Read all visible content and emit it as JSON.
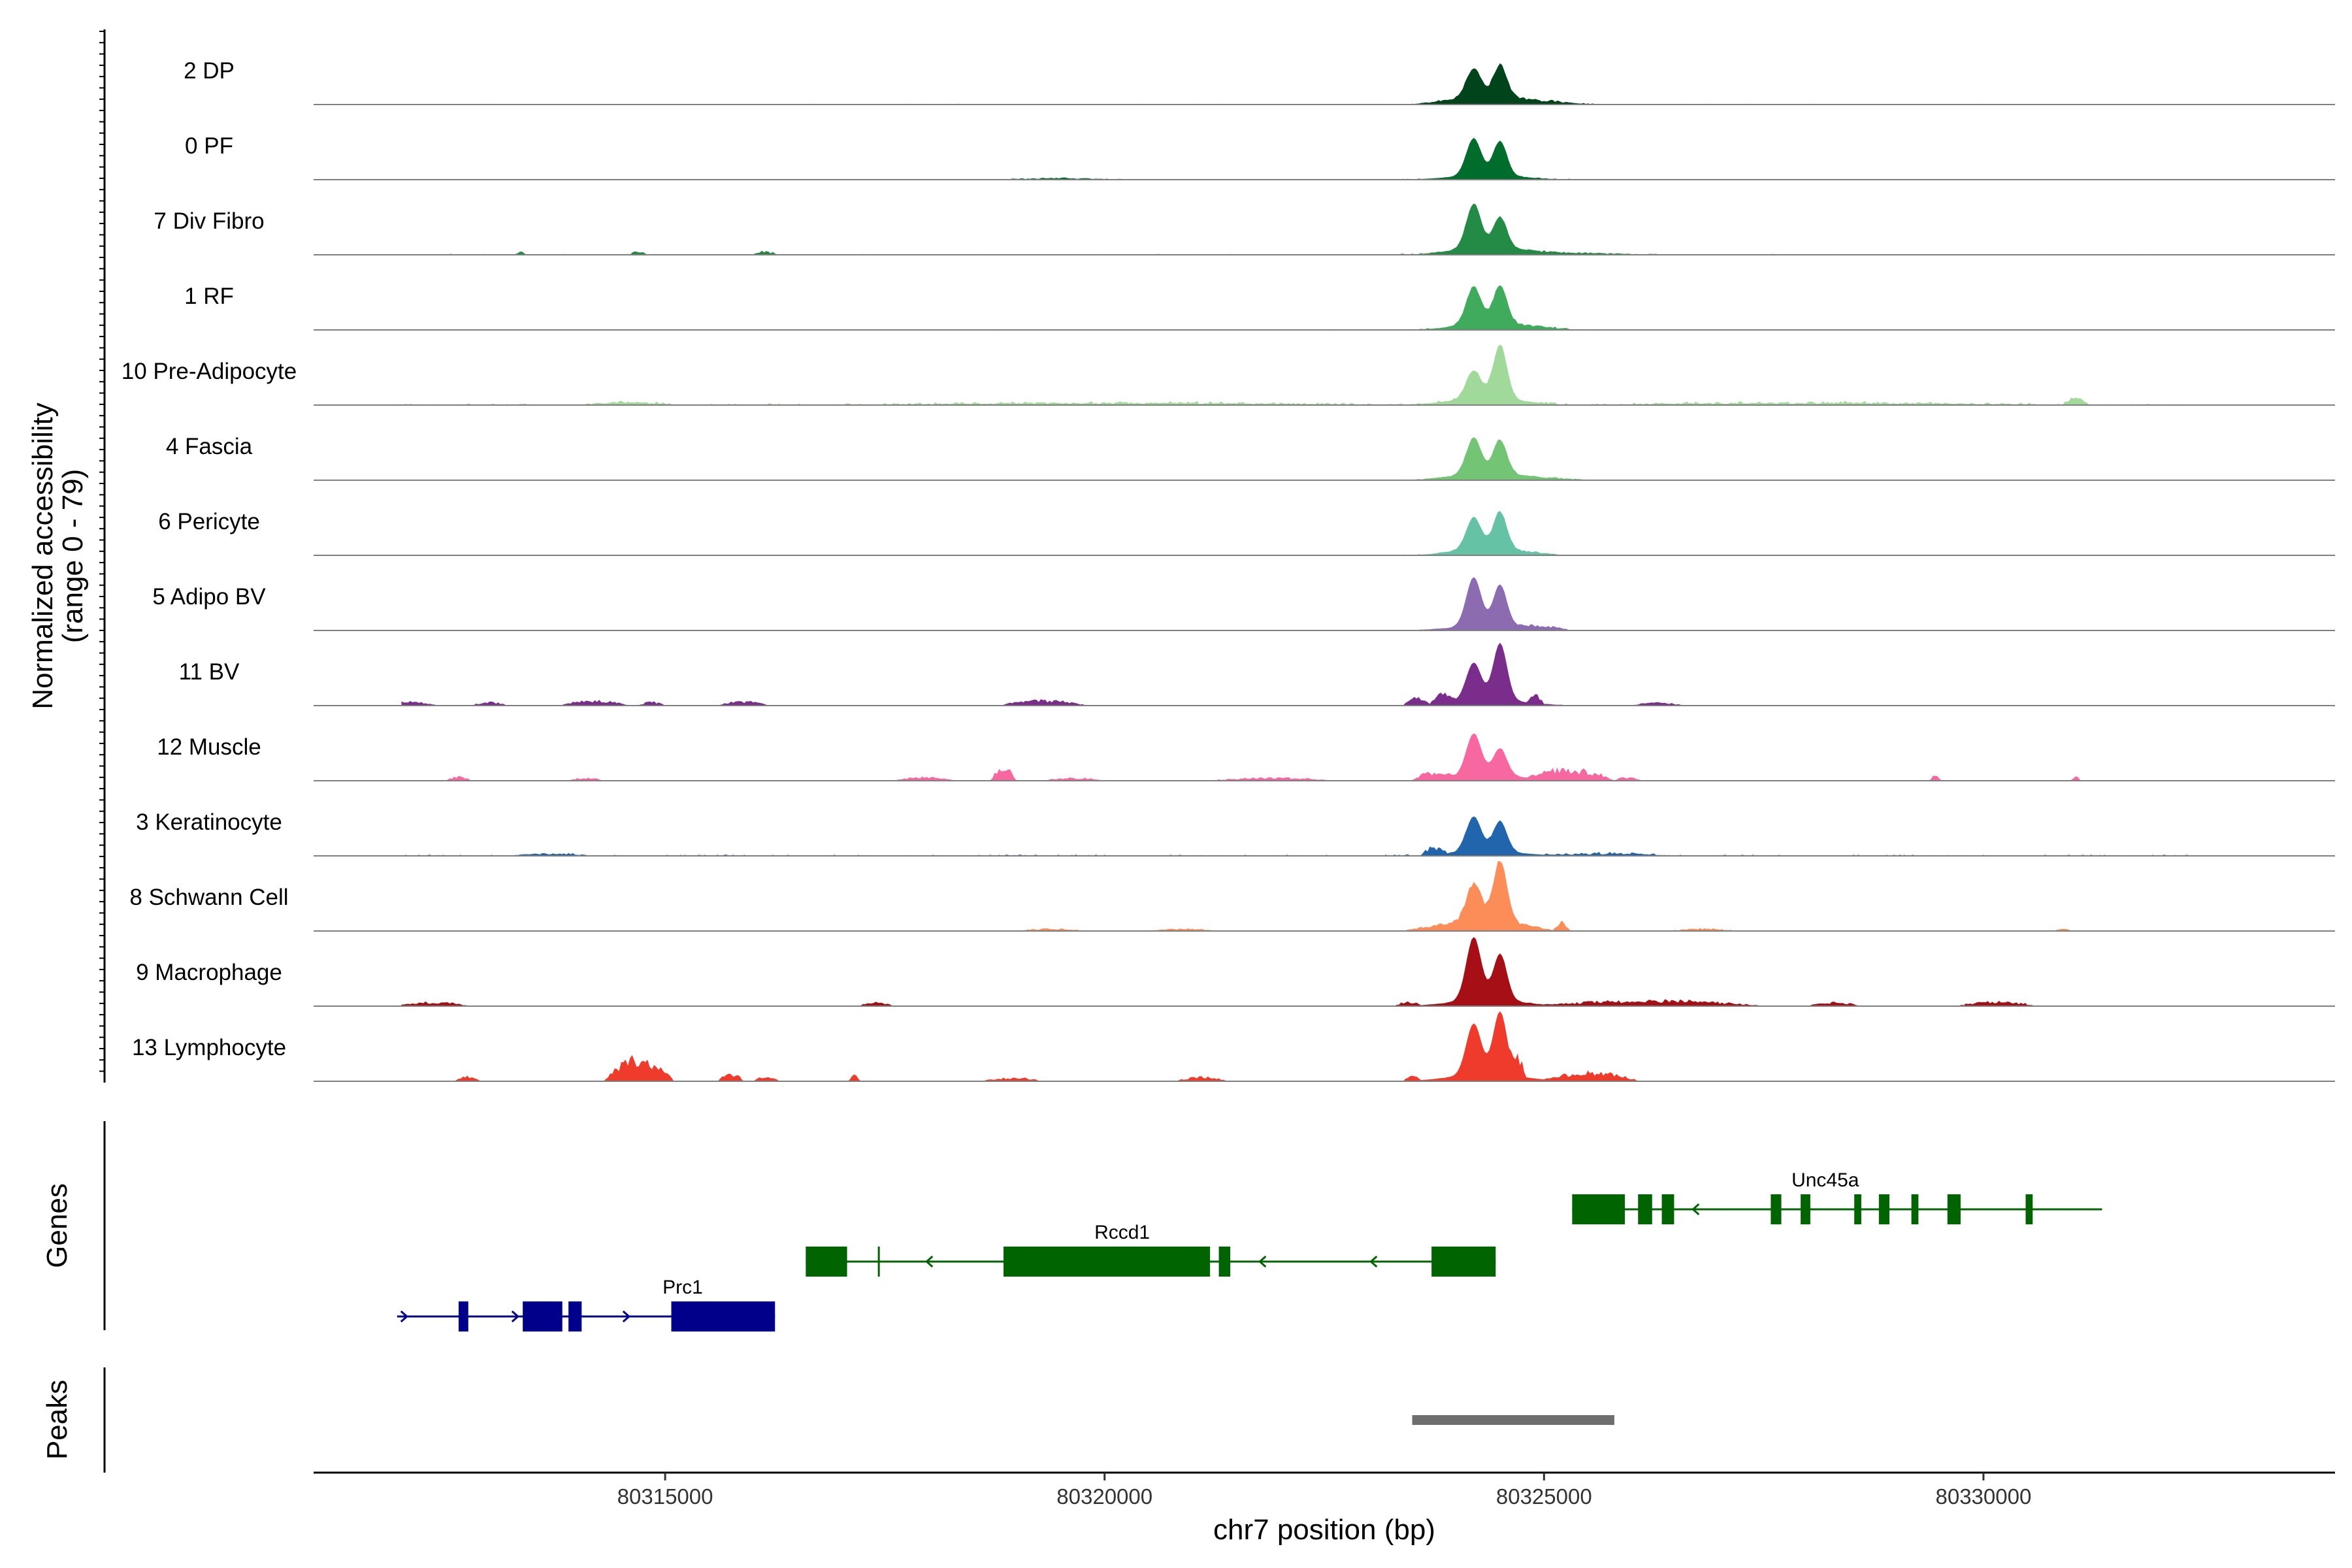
{
  "chart_data": {
    "type": "area",
    "y_axis_title": {
      "line1": "Normalized accessibility",
      "line2": "(range 0 - 79)"
    },
    "ylim": [
      0,
      79
    ],
    "x_axis_title": "chr7 position (bp)",
    "xlim": [
      80311000,
      80334000
    ],
    "x_ticks": [
      80315000,
      80320000,
      80325000,
      80330000
    ],
    "x_tick_labels": [
      "80315000",
      "80320000",
      "80325000",
      "80330000"
    ],
    "main_peak_summits": [
      80324200,
      80324500
    ],
    "series": [
      {
        "name": "2 DP",
        "color": "#00441b",
        "peak_heights": [
          32,
          35
        ],
        "tail": 1.0,
        "noise": 0.8,
        "clusters": [
          [
            80323500,
            80325600,
            5
          ]
        ]
      },
      {
        "name": "0 PF",
        "color": "#006d2c",
        "peak_heights": [
          40,
          37
        ],
        "tail": 1.0,
        "noise": 0.8,
        "clusters": [
          [
            80318800,
            80320200,
            2
          ]
        ]
      },
      {
        "name": "7 Div Fibro",
        "color": "#238b45",
        "peak_heights": [
          48,
          34
        ],
        "tail": 1.2,
        "noise": 1.0,
        "clusters": [
          [
            80313300,
            80313400,
            5
          ],
          [
            80314600,
            80314800,
            4
          ],
          [
            80316000,
            80316300,
            4
          ],
          [
            80323600,
            80326300,
            3
          ]
        ]
      },
      {
        "name": "1 RF",
        "color": "#41ab5d",
        "peak_heights": [
          40,
          41
        ],
        "tail": 1.0,
        "noise": 0.8,
        "clusters": [
          [
            80323800,
            80325400,
            4
          ]
        ]
      },
      {
        "name": "10 Pre-Adipocyte",
        "color": "#a1d99b",
        "peak_heights": [
          30,
          58
        ],
        "tail": 1.6,
        "noise": 1.8,
        "clusters": [
          [
            80314000,
            80315100,
            4
          ],
          [
            80317100,
            80323200,
            3
          ],
          [
            80325400,
            80330900,
            3
          ],
          [
            80330900,
            80331200,
            9
          ]
        ]
      },
      {
        "name": "4 Fascia",
        "color": "#74c476",
        "peak_heights": [
          39,
          37
        ],
        "tail": 1.1,
        "noise": 0.6,
        "clusters": [
          [
            80323600,
            80325600,
            3
          ]
        ]
      },
      {
        "name": "6 Pericyte",
        "color": "#66c2a4",
        "peak_heights": [
          34,
          40
        ],
        "tail": 1.1,
        "noise": 0.6,
        "clusters": [
          [
            80323700,
            80325200,
            3
          ]
        ]
      },
      {
        "name": "5 Adipo BV",
        "color": "#8c6bb1",
        "peak_heights": [
          53,
          45
        ],
        "tail": 1.0,
        "noise": 0.4,
        "clusters": [
          [
            80324600,
            80325300,
            5
          ]
        ]
      },
      {
        "name": "11 BV",
        "color": "#7b2d8b",
        "peak_heights": [
          40,
          61
        ],
        "tail": 1.4,
        "noise": 0.4,
        "clusters": [
          [
            80311700,
            80312400,
            6
          ],
          [
            80312800,
            80313200,
            5
          ],
          [
            80313800,
            80314600,
            7
          ],
          [
            80314700,
            80315000,
            5
          ],
          [
            80315600,
            80316200,
            6
          ],
          [
            80318800,
            80319800,
            7
          ],
          [
            80323400,
            80323700,
            10
          ],
          [
            80323700,
            80324000,
            12
          ],
          [
            80324800,
            80325000,
            11
          ],
          [
            80326000,
            80326600,
            4
          ]
        ]
      },
      {
        "name": "12 Muscle",
        "color": "#f768a1",
        "peak_heights": [
          45,
          29
        ],
        "tail": 1.3,
        "noise": 0.6,
        "clusters": [
          [
            80312500,
            80312800,
            5
          ],
          [
            80313900,
            80314300,
            4
          ],
          [
            80317600,
            80318300,
            5
          ],
          [
            80318700,
            80319000,
            18
          ],
          [
            80319300,
            80320000,
            4
          ],
          [
            80321200,
            80322600,
            4
          ],
          [
            80323500,
            80324000,
            9
          ],
          [
            80324800,
            80325800,
            15
          ],
          [
            80325800,
            80326100,
            5
          ],
          [
            80329400,
            80329500,
            7
          ],
          [
            80331000,
            80331100,
            5
          ]
        ]
      },
      {
        "name": "3 Keratinocyte",
        "color": "#2166ac",
        "peak_heights": [
          38,
          33
        ],
        "tail": 1.0,
        "noise": 1.4,
        "clusters": [
          [
            80313200,
            80314200,
            3
          ],
          [
            80323600,
            80323900,
            9
          ],
          [
            80325000,
            80326500,
            3
          ]
        ]
      },
      {
        "name": "8 Schwann Cell",
        "color": "#fc8d59",
        "peak_heights": [
          40,
          66
        ],
        "tail": 1.2,
        "noise": 0.4,
        "clusters": [
          [
            80319000,
            80319800,
            3
          ],
          [
            80320500,
            80321300,
            3
          ],
          [
            80323400,
            80325100,
            8
          ],
          [
            80325100,
            80325300,
            11
          ],
          [
            80326400,
            80327200,
            3
          ],
          [
            80330800,
            80331000,
            4
          ]
        ]
      },
      {
        "name": "9 Macrophage",
        "color": "#a50f15",
        "peak_heights": [
          68,
          50
        ],
        "tail": 1.4,
        "noise": 0.6,
        "clusters": [
          [
            80311900,
            80312800,
            5
          ],
          [
            80317200,
            80317600,
            5
          ],
          [
            80323300,
            80323600,
            5
          ],
          [
            80325000,
            80327500,
            8
          ],
          [
            80328000,
            80328600,
            5
          ],
          [
            80329700,
            80330600,
            6
          ]
        ]
      },
      {
        "name": "13 Lymphocyte",
        "color": "#ef3b2c",
        "peak_heights": [
          55,
          68
        ],
        "tail": 1.6,
        "noise": 0.2,
        "clusters": [
          [
            80312600,
            80312900,
            6
          ],
          [
            80314300,
            80315100,
            30
          ],
          [
            80315600,
            80315900,
            10
          ],
          [
            80316000,
            80316300,
            6
          ],
          [
            80317100,
            80317200,
            8
          ],
          [
            80318600,
            80319300,
            5
          ],
          [
            80320800,
            80321400,
            6
          ],
          [
            80323400,
            80323600,
            6
          ],
          [
            80324600,
            80324800,
            23
          ],
          [
            80325000,
            80326100,
            12
          ]
        ]
      }
    ],
    "gene_track_title": "Genes",
    "genes": [
      {
        "name": "Prc1",
        "color": "#00008b",
        "strand": "+",
        "row": 0,
        "start": 80311950,
        "end": 80316250,
        "label_pos": 80315200,
        "exons": [
          [
            80312650,
            80312760
          ],
          [
            80313380,
            80313830
          ],
          [
            80313900,
            80314050
          ],
          [
            80315070,
            80316250
          ]
        ]
      },
      {
        "name": "Rccd1",
        "color": "#006400",
        "strand": "-",
        "row": 1,
        "start": 80316600,
        "end": 80324450,
        "label_pos": 80320200,
        "exons": [
          [
            80316600,
            80317070
          ],
          [
            80317420,
            80317440
          ],
          [
            80318850,
            80321200
          ],
          [
            80321300,
            80321430
          ],
          [
            80323720,
            80324450
          ]
        ]
      },
      {
        "name": "Unc45a",
        "color": "#006400",
        "strand": "-",
        "row": 2,
        "start": 80325320,
        "end": 80331350,
        "label_pos": 80328200,
        "exons": [
          [
            80325320,
            80325920
          ],
          [
            80326070,
            80326230
          ],
          [
            80326340,
            80326480
          ],
          [
            80327580,
            80327700
          ],
          [
            80327920,
            80328030
          ],
          [
            80328530,
            80328610
          ],
          [
            80328810,
            80328930
          ],
          [
            80329180,
            80329260
          ],
          [
            80329590,
            80329740
          ],
          [
            80330480,
            80330560
          ]
        ]
      }
    ],
    "peak_track_title": "Peaks",
    "peaks": [
      [
        80323500,
        80325800
      ]
    ]
  }
}
